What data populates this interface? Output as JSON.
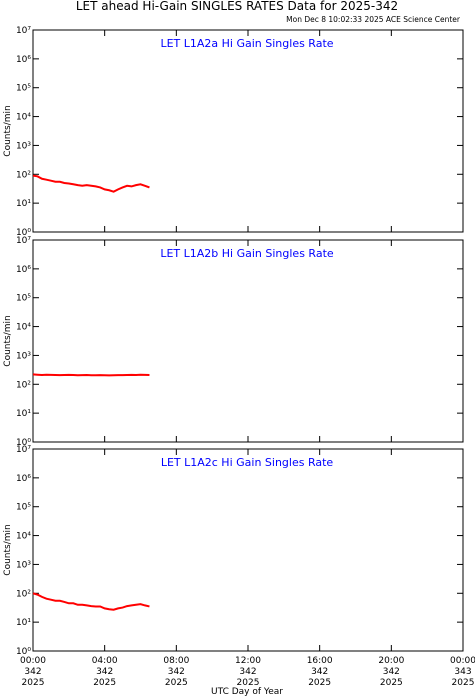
{
  "title": "LET ahead Hi-Gain SINGLES RATES Data for 2025-342",
  "subtitle": "Mon Dec  8 10:02:33 2025 ACE Science Center",
  "chart_data": [
    {
      "type": "line",
      "title": "LET L1A2a Hi Gain Singles Rate",
      "ylabel": "Counts/min",
      "log_scale": true,
      "ylim": [
        1,
        10000000
      ],
      "yticks": [
        {
          "value": 1,
          "label": "10⁰"
        },
        {
          "value": 10,
          "label": "10¹"
        },
        {
          "value": 100,
          "label": "10²"
        },
        {
          "value": 1000,
          "label": "10³"
        },
        {
          "value": 10000,
          "label": "10⁴"
        },
        {
          "value": 100000,
          "label": "10⁵"
        },
        {
          "value": 1000000,
          "label": "10⁶"
        },
        {
          "value": 10000000,
          "label": "10⁷"
        }
      ],
      "xlim": [
        0,
        24
      ],
      "xticks": [
        0,
        4,
        8,
        12,
        16,
        20,
        24
      ],
      "x": [
        0,
        0.25,
        0.5,
        0.75,
        1,
        1.25,
        1.5,
        1.75,
        2,
        2.25,
        2.5,
        2.75,
        3,
        3.25,
        3.5,
        3.75,
        4,
        4.25,
        4.5,
        4.75,
        5,
        5.25,
        5.5,
        5.75,
        6,
        6.25,
        6.5
      ],
      "color": "#ff0000",
      "values": [
        90,
        85,
        70,
        65,
        60,
        55,
        55,
        50,
        48,
        45,
        42,
        40,
        42,
        40,
        38,
        35,
        30,
        28,
        25,
        30,
        35,
        40,
        38,
        42,
        45,
        40,
        35
      ]
    },
    {
      "type": "line",
      "title": "LET L1A2b Hi Gain Singles Rate",
      "ylabel": "Counts/min",
      "log_scale": true,
      "ylim": [
        1,
        10000000
      ],
      "yticks": [
        {
          "value": 1,
          "label": "10⁰"
        },
        {
          "value": 10,
          "label": "10¹"
        },
        {
          "value": 100,
          "label": "10²"
        },
        {
          "value": 1000,
          "label": "10³"
        },
        {
          "value": 10000,
          "label": "10⁴"
        },
        {
          "value": 100000,
          "label": "10⁵"
        },
        {
          "value": 1000000,
          "label": "10⁶"
        },
        {
          "value": 10000000,
          "label": "10⁷"
        }
      ],
      "xlim": [
        0,
        24
      ],
      "xticks": [
        0,
        4,
        8,
        12,
        16,
        20,
        24
      ],
      "x": [
        0,
        0.25,
        0.5,
        0.75,
        1,
        1.25,
        1.5,
        1.75,
        2,
        2.25,
        2.5,
        2.75,
        3,
        3.25,
        3.5,
        3.75,
        4,
        4.25,
        4.5,
        4.75,
        5,
        5.25,
        5.5,
        5.75,
        6,
        6.25,
        6.5
      ],
      "color": "#ff0000",
      "values": [
        220,
        215,
        210,
        215,
        212,
        210,
        208,
        210,
        212,
        210,
        205,
        208,
        210,
        206,
        205,
        208,
        205,
        203,
        205,
        207,
        208,
        210,
        212,
        210,
        215,
        212,
        210
      ]
    },
    {
      "type": "line",
      "title": "LET L1A2c Hi Gain Singles Rate",
      "ylabel": "Counts/min",
      "xlabel": "UTC Day of Year",
      "log_scale": true,
      "ylim": [
        1,
        10000000
      ],
      "yticks": [
        {
          "value": 1,
          "label": "10⁰"
        },
        {
          "value": 10,
          "label": "10¹"
        },
        {
          "value": 100,
          "label": "10²"
        },
        {
          "value": 1000,
          "label": "10³"
        },
        {
          "value": 10000,
          "label": "10⁴"
        },
        {
          "value": 100000,
          "label": "10⁵"
        },
        {
          "value": 1000000,
          "label": "10⁶"
        },
        {
          "value": 10000000,
          "label": "10⁷"
        }
      ],
      "xlim": [
        0,
        24
      ],
      "xticks": [
        {
          "value": 0,
          "label": "00:00 342 2025"
        },
        {
          "value": 4,
          "label": "04:00 342 2025"
        },
        {
          "value": 8,
          "label": "08:00 342 2025"
        },
        {
          "value": 12,
          "label": "12:00 342 2025"
        },
        {
          "value": 16,
          "label": "16:00 342 2025"
        },
        {
          "value": 20,
          "label": "20:00 342 2025"
        },
        {
          "value": 24,
          "label": "00:00 343 2025"
        }
      ],
      "x": [
        0,
        0.25,
        0.5,
        0.75,
        1,
        1.25,
        1.5,
        1.75,
        2,
        2.25,
        2.5,
        2.75,
        3,
        3.25,
        3.5,
        3.75,
        4,
        4.25,
        4.5,
        4.75,
        5,
        5.25,
        5.5,
        5.75,
        6,
        6.25,
        6.5
      ],
      "color": "#ff0000",
      "values": [
        100,
        90,
        75,
        65,
        60,
        55,
        55,
        50,
        45,
        45,
        40,
        40,
        38,
        36,
        35,
        35,
        30,
        28,
        27,
        30,
        32,
        36,
        38,
        40,
        42,
        38,
        35
      ]
    }
  ]
}
